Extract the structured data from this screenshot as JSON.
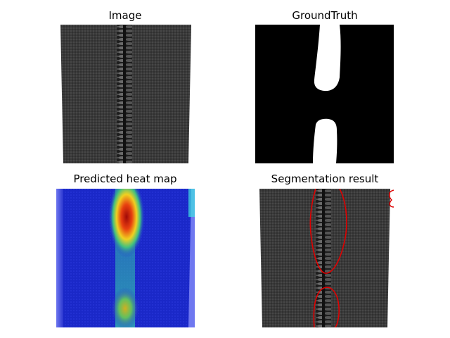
{
  "figure": {
    "panels": [
      {
        "title": "Image",
        "kind": "zipper-photo"
      },
      {
        "title": "GroundTruth",
        "kind": "binary-mask"
      },
      {
        "title": "Predicted heat map",
        "kind": "heatmap-overlay"
      },
      {
        "title": "Segmentation result",
        "kind": "contour-overlay"
      }
    ]
  },
  "colors": {
    "fabric": "#3a3a3a",
    "mask_fg": "#ffffff",
    "mask_bg": "#000000",
    "heat_low": "#1f2fe0",
    "heat_high": "#b01010",
    "contour": "#e00000"
  }
}
